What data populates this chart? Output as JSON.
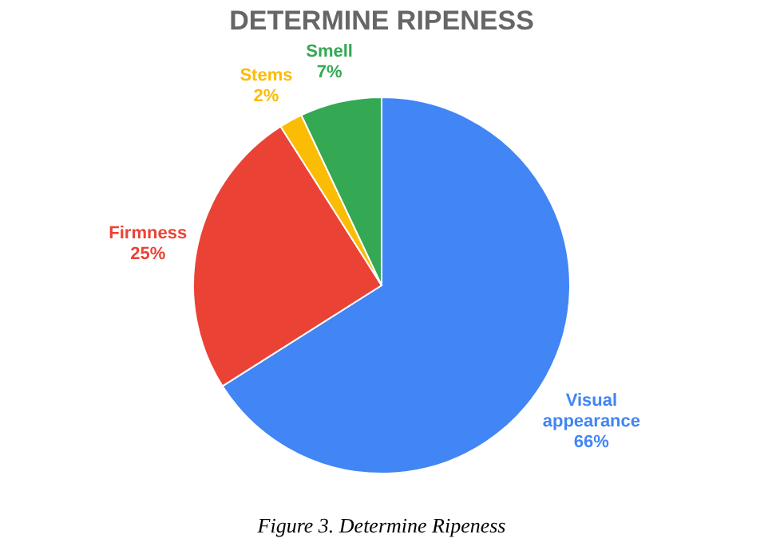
{
  "chart_data": {
    "type": "pie",
    "title": "DETERMINE RIPENESS",
    "categories": [
      "Visual appearance",
      "Firmness",
      "Stems",
      "Smell"
    ],
    "values": [
      66,
      25,
      2,
      7
    ],
    "colors": [
      "#4285f4",
      "#ea4335",
      "#fbbc04",
      "#34a853"
    ],
    "value_labels": [
      "66%",
      "25%",
      "2%",
      "7%"
    ],
    "legend": false,
    "annotations": [
      "Figure 3. Determine Ripeness"
    ]
  }
}
